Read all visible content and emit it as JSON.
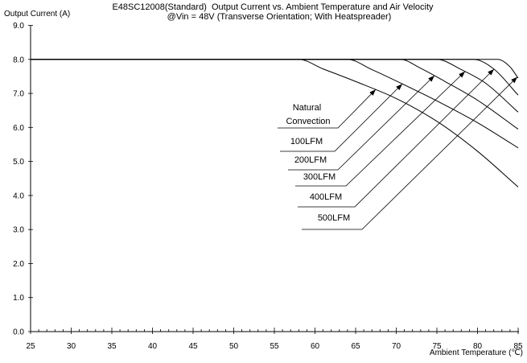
{
  "chart_data": {
    "type": "line",
    "title": "E48SC12008(Standard)  Output Current vs. Ambient Temperature and Air Velocity",
    "subtitle": "@Vin = 48V (Transverse Orientation; With Heatspreader)",
    "xlabel": "Ambient Temperature (℃)",
    "ylabel": "Output Current (A)",
    "xlim": [
      25,
      85
    ],
    "ylim": [
      0,
      9
    ],
    "xticks": [
      "25",
      "30",
      "35",
      "40",
      "45",
      "50",
      "55",
      "60",
      "65",
      "70",
      "75",
      "80",
      "85"
    ],
    "yticks": [
      "0.0",
      "1.0",
      "2.0",
      "3.0",
      "4.0",
      "5.0",
      "6.0",
      "7.0",
      "8.0",
      "9.0"
    ],
    "grid": false,
    "colors": {
      "lines": "#000000",
      "text": "#000000",
      "background": "#ffffff"
    },
    "series": [
      {
        "name": "Natural Convection",
        "points": [
          [
            25,
            8
          ],
          [
            58,
            8
          ],
          [
            61,
            7.72
          ],
          [
            65,
            7.35
          ],
          [
            70,
            6.85
          ],
          [
            75,
            6.18
          ],
          [
            80,
            5.3
          ],
          [
            85,
            4.25
          ]
        ]
      },
      {
        "name": "100LFM",
        "points": [
          [
            25,
            8
          ],
          [
            64,
            8
          ],
          [
            67,
            7.7
          ],
          [
            71,
            7.25
          ],
          [
            75,
            6.78
          ],
          [
            80,
            6.14
          ],
          [
            85,
            5.4
          ]
        ]
      },
      {
        "name": "200LFM",
        "points": [
          [
            25,
            8
          ],
          [
            70.5,
            8
          ],
          [
            73,
            7.74
          ],
          [
            76,
            7.35
          ],
          [
            80,
            6.8
          ],
          [
            85,
            5.95
          ]
        ]
      },
      {
        "name": "300LFM",
        "points": [
          [
            25,
            8
          ],
          [
            75,
            8
          ],
          [
            78,
            7.7
          ],
          [
            81,
            7.3
          ],
          [
            85,
            6.45
          ]
        ]
      },
      {
        "name": "400LFM",
        "points": [
          [
            25,
            8
          ],
          [
            79.5,
            8
          ],
          [
            82,
            7.72
          ],
          [
            85,
            6.95
          ]
        ]
      },
      {
        "name": "500LFM",
        "points": [
          [
            25,
            8
          ],
          [
            82.5,
            8
          ],
          [
            84,
            7.78
          ],
          [
            85,
            7.45
          ]
        ]
      }
    ]
  }
}
